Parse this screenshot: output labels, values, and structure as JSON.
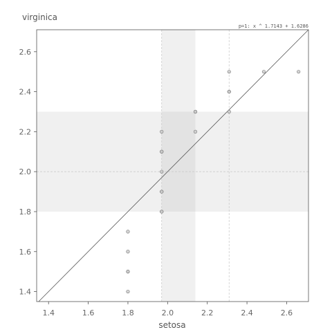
{
  "chart_data": {
    "type": "scatter",
    "title": "",
    "xlabel": "setosa",
    "ylabel": "virginica",
    "xlim": [
      1.34,
      2.71
    ],
    "ylim": [
      1.35,
      2.71
    ],
    "xticks": [
      1.4,
      1.6,
      1.8,
      2.0,
      2.2,
      2.4,
      2.6
    ],
    "yticks": [
      1.4,
      1.6,
      1.8,
      2.0,
      2.2,
      2.4,
      2.6
    ],
    "xtick_labels": [
      "1.4",
      "1.6",
      "1.8",
      "2.0",
      "2.2",
      "2.4",
      "2.6"
    ],
    "ytick_labels": [
      "1.4",
      "1.6",
      "1.8",
      "2.0",
      "2.2",
      "2.4",
      "2.6"
    ],
    "points": [
      {
        "x": 1.8,
        "y": 1.4
      },
      {
        "x": 1.8,
        "y": 1.5
      },
      {
        "x": 1.8,
        "y": 1.5
      },
      {
        "x": 1.8,
        "y": 1.6
      },
      {
        "x": 1.8,
        "y": 1.7
      },
      {
        "x": 1.97,
        "y": 1.8
      },
      {
        "x": 1.97,
        "y": 1.8
      },
      {
        "x": 1.97,
        "y": 1.9
      },
      {
        "x": 1.97,
        "y": 1.9
      },
      {
        "x": 1.97,
        "y": 2.0
      },
      {
        "x": 1.97,
        "y": 2.1
      },
      {
        "x": 1.97,
        "y": 2.1
      },
      {
        "x": 1.97,
        "y": 2.2
      },
      {
        "x": 2.14,
        "y": 2.2
      },
      {
        "x": 2.14,
        "y": 2.3
      },
      {
        "x": 2.14,
        "y": 2.3
      },
      {
        "x": 2.31,
        "y": 2.3
      },
      {
        "x": 2.31,
        "y": 2.4
      },
      {
        "x": 2.31,
        "y": 2.4
      },
      {
        "x": 2.31,
        "y": 2.5
      },
      {
        "x": 2.485,
        "y": 2.5
      },
      {
        "x": 2.66,
        "y": 2.5
      }
    ],
    "fit_line": {
      "label": "p=1: x ^ 1.7143 + 1.6286",
      "slope": 1.0,
      "intercept": 0.0
    },
    "x_band": [
      1.97,
      2.14
    ],
    "y_band": [
      1.8,
      2.3
    ],
    "x_ref_lines": [
      1.97,
      2.31
    ],
    "y_ref_lines": [
      2.0
    ],
    "colors": {
      "point_fill": "#c8c8c8",
      "point_stroke": "#777777",
      "band": "#f0f0f0",
      "band_overlap": "#e3e3e3",
      "line": "#555555",
      "ref": "#cccccc"
    }
  }
}
